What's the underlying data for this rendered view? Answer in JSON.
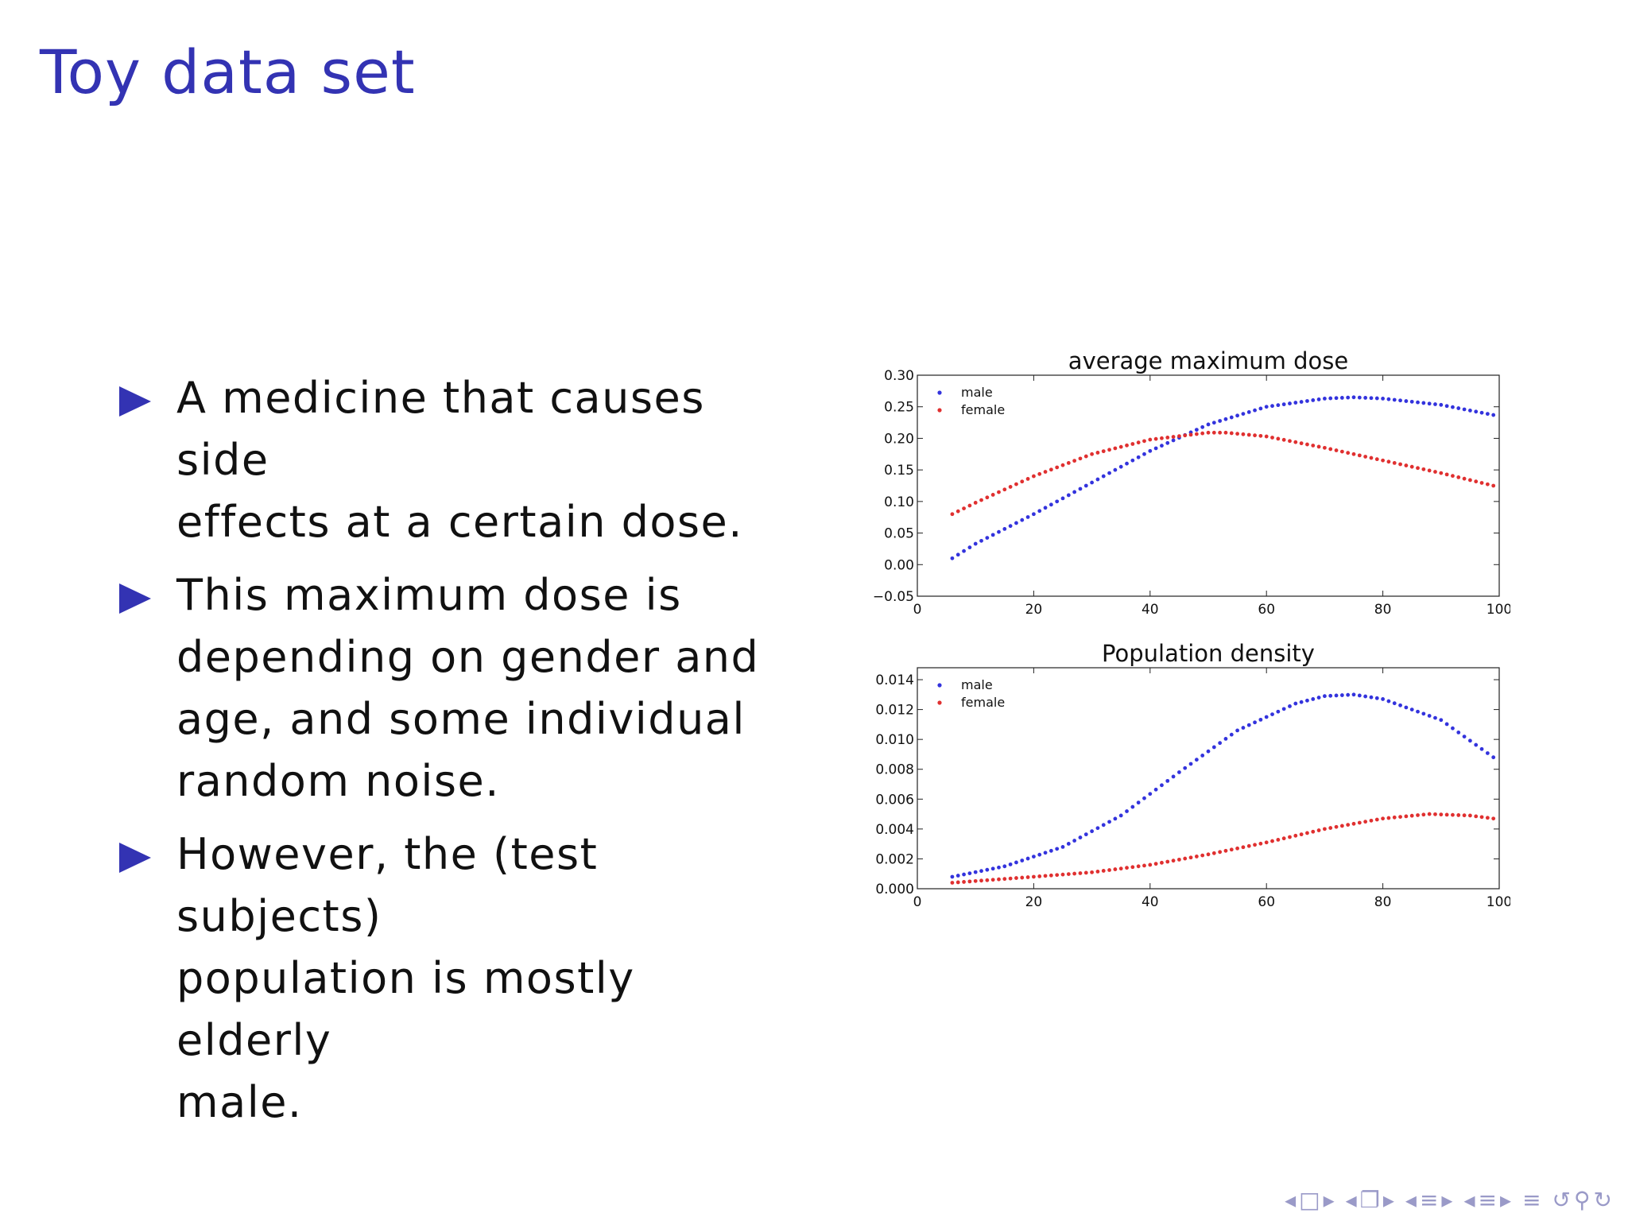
{
  "slide": {
    "title": "Toy data set",
    "bullets": [
      {
        "lines": [
          "A medicine that causes side",
          "effects at a certain dose."
        ]
      },
      {
        "lines": [
          "This maximum dose is",
          "depending on gender and",
          "age, and some individual",
          "random noise."
        ]
      },
      {
        "lines": [
          "However, the (test subjects)",
          "population is mostly elderly",
          "male."
        ]
      }
    ]
  },
  "colors": {
    "title": "#3333b3",
    "male": "#3333dd",
    "female": "#e03030",
    "nav": "#9a9ac8"
  },
  "chart_data": [
    {
      "type": "scatter",
      "title": "average maximum dose",
      "xlabel": "",
      "ylabel": "",
      "xlim": [
        0,
        100
      ],
      "ylim": [
        -0.05,
        0.3
      ],
      "xticks": [
        0,
        20,
        40,
        60,
        80,
        100
      ],
      "xtick_labels": [
        "0",
        "20",
        "40",
        "60",
        "80",
        "100"
      ],
      "yticks": [
        -0.05,
        0.0,
        0.05,
        0.1,
        0.15,
        0.2,
        0.25,
        0.3
      ],
      "ytick_labels": [
        "−0.05",
        "0.00",
        "0.05",
        "0.10",
        "0.15",
        "0.20",
        "0.25",
        "0.30"
      ],
      "grid": false,
      "legend": "top-left",
      "series": [
        {
          "name": "male",
          "color": "#3333dd",
          "points": [
            [
              6,
              0.01
            ],
            [
              10,
              0.033
            ],
            [
              20,
              0.08
            ],
            [
              30,
              0.13
            ],
            [
              40,
              0.18
            ],
            [
              50,
              0.222
            ],
            [
              60,
              0.25
            ],
            [
              70,
              0.263
            ],
            [
              75,
              0.265
            ],
            [
              80,
              0.263
            ],
            [
              90,
              0.253
            ],
            [
              99,
              0.237
            ]
          ]
        },
        {
          "name": "female",
          "color": "#e03030",
          "points": [
            [
              6,
              0.08
            ],
            [
              10,
              0.098
            ],
            [
              20,
              0.14
            ],
            [
              30,
              0.175
            ],
            [
              40,
              0.198
            ],
            [
              50,
              0.209
            ],
            [
              53,
              0.209
            ],
            [
              60,
              0.203
            ],
            [
              70,
              0.185
            ],
            [
              80,
              0.165
            ],
            [
              90,
              0.145
            ],
            [
              99,
              0.125
            ]
          ]
        }
      ]
    },
    {
      "type": "scatter",
      "title": "Population density",
      "xlabel": "",
      "ylabel": "",
      "xlim": [
        0,
        100
      ],
      "ylim": [
        0,
        0.0148
      ],
      "xticks": [
        0,
        20,
        40,
        60,
        80,
        100
      ],
      "xtick_labels": [
        "0",
        "20",
        "40",
        "60",
        "80",
        "100"
      ],
      "yticks": [
        0.0,
        0.002,
        0.004,
        0.006,
        0.008,
        0.01,
        0.012,
        0.014
      ],
      "ytick_labels": [
        "0.000",
        "0.002",
        "0.004",
        "0.006",
        "0.008",
        "0.010",
        "0.012",
        "0.014"
      ],
      "grid": false,
      "legend": "top-left",
      "series": [
        {
          "name": "male",
          "color": "#3333dd",
          "points": [
            [
              6,
              0.0008
            ],
            [
              15,
              0.0015
            ],
            [
              25,
              0.0028
            ],
            [
              35,
              0.0049
            ],
            [
              45,
              0.0078
            ],
            [
              55,
              0.0106
            ],
            [
              65,
              0.0124
            ],
            [
              70,
              0.0129
            ],
            [
              75,
              0.013
            ],
            [
              80,
              0.0127
            ],
            [
              90,
              0.0113
            ],
            [
              99,
              0.0088
            ]
          ]
        },
        {
          "name": "female",
          "color": "#e03030",
          "points": [
            [
              6,
              0.0004
            ],
            [
              20,
              0.0008
            ],
            [
              30,
              0.0011
            ],
            [
              40,
              0.0016
            ],
            [
              50,
              0.0023
            ],
            [
              60,
              0.0031
            ],
            [
              70,
              0.004
            ],
            [
              80,
              0.0047
            ],
            [
              88,
              0.005
            ],
            [
              95,
              0.0049
            ],
            [
              99,
              0.0047
            ]
          ]
        }
      ]
    }
  ]
}
